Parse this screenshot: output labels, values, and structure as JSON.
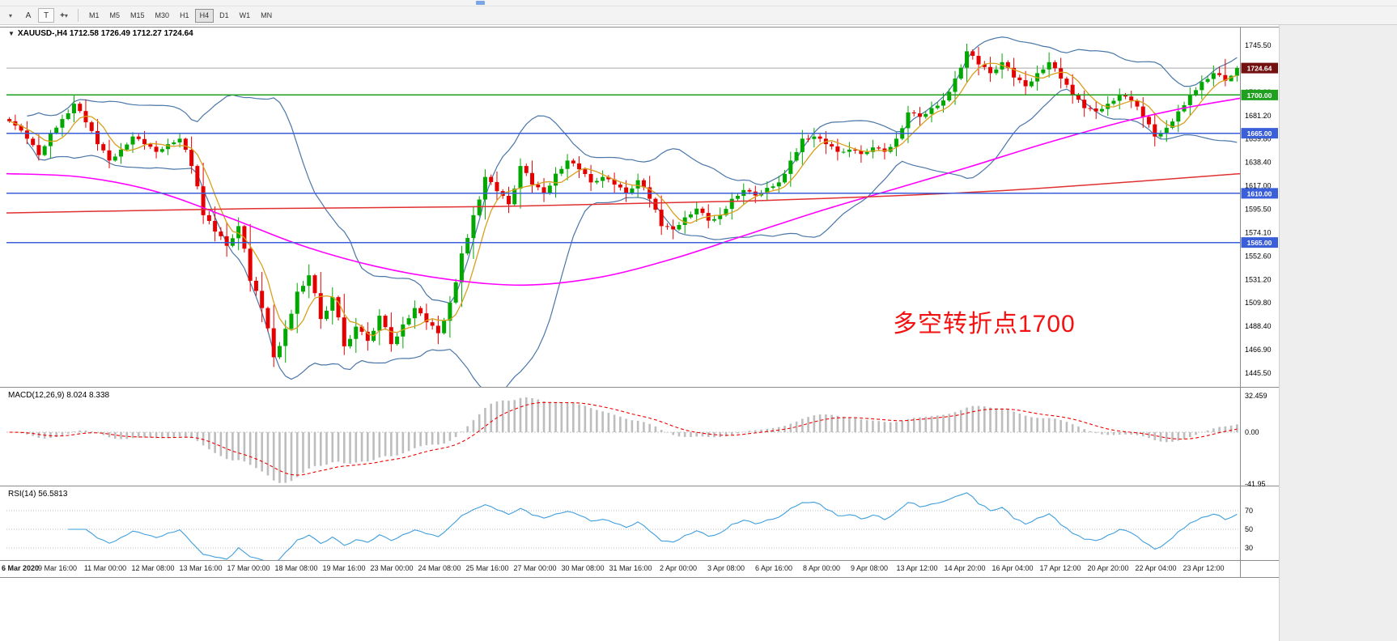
{
  "toolbar": {
    "chart_dropdown_glyph": "▾",
    "annotation_tool_label": "A",
    "text_tool_label": "T",
    "crosshair_glyph": "+",
    "tools_dropdown_glyph": "▾",
    "timeframes": [
      "M1",
      "M5",
      "M15",
      "M30",
      "H1",
      "H4",
      "D1",
      "W1",
      "MN"
    ],
    "active_timeframe": "H4"
  },
  "chart": {
    "collapse_glyph": "▼",
    "title_line": "XAUUSD-,H4  1712.58 1726.49 1712.27 1724.64",
    "annotation": "多空转折点1700",
    "price_axis_labels": [
      "1745.50",
      "1702.60",
      "1681.20",
      "1659.80",
      "1638.40",
      "1617.00",
      "1595.50",
      "1574.10",
      "1552.60",
      "1531.20",
      "1509.80",
      "1488.40",
      "1466.90",
      "1445.50"
    ],
    "badges": [
      {
        "label": "1724.64",
        "value": 1724.64,
        "type": "dark"
      },
      {
        "label": "1700.00",
        "value": 1700,
        "type": "green"
      },
      {
        "label": "1665.00",
        "value": 1665,
        "type": "blue"
      },
      {
        "label": "1610.00",
        "value": 1610,
        "type": "blue"
      },
      {
        "label": "1565.00",
        "value": 1565,
        "type": "blue"
      }
    ]
  },
  "macd": {
    "label": "MACD(12,26,9) 8.024 8.338",
    "axis_labels": [
      "32.459",
      "0.00",
      "-41.95"
    ]
  },
  "rsi": {
    "label": "RSI(14) 56.5813",
    "axis_labels": [
      "70",
      "50",
      "30"
    ]
  },
  "colors": {
    "up": "#00A800",
    "down": "#E50000",
    "bollinger": "#4A76A8",
    "ma_fast": "#D8A01D",
    "ma_mid": "#FF00FF",
    "ma_slow": "#E03030",
    "level_blue": "#3A5FD9",
    "level_green": "#1FA11F",
    "badge_dark": "#731010",
    "bid_line": "#A8A8A8",
    "macd_hist": "#BDBDBD",
    "macd_signal": "#F00000",
    "rsi_line": "#3E9EDE",
    "annotation": "#F21212"
  },
  "chart_data": {
    "type": "candlestick",
    "symbol": "XAUUSD-",
    "timeframe": "H4",
    "last_ohlc": {
      "open": 1712.58,
      "high": 1726.49,
      "low": 1712.27,
      "close": 1724.64
    },
    "current_price": 1724.64,
    "horizontal_levels": [
      {
        "value": 1700,
        "color": "green"
      },
      {
        "value": 1665,
        "color": "blue"
      },
      {
        "value": 1610,
        "color": "blue"
      },
      {
        "value": 1565,
        "color": "blue"
      }
    ],
    "candles": [
      [
        1678,
        1682,
        1668,
        1672
      ],
      [
        1672,
        1676,
        1655,
        1660
      ],
      [
        1660,
        1664,
        1640,
        1645
      ],
      [
        1645,
        1668,
        1642,
        1665
      ],
      [
        1665,
        1682,
        1662,
        1678
      ],
      [
        1678,
        1700,
        1675,
        1692
      ],
      [
        1692,
        1696,
        1670,
        1675
      ],
      [
        1675,
        1678,
        1649,
        1655
      ],
      [
        1655,
        1659,
        1633,
        1640
      ],
      [
        1640,
        1656,
        1637,
        1650
      ],
      [
        1650,
        1666,
        1647,
        1662
      ],
      [
        1662,
        1667,
        1650,
        1655
      ],
      [
        1655,
        1658,
        1642,
        1648
      ],
      [
        1648,
        1660,
        1645,
        1655
      ],
      [
        1655,
        1665,
        1652,
        1660
      ],
      [
        1660,
        1662,
        1628,
        1635
      ],
      [
        1635,
        1638,
        1582,
        1590
      ],
      [
        1590,
        1598,
        1566,
        1575
      ],
      [
        1575,
        1584,
        1552,
        1562
      ],
      [
        1562,
        1588,
        1558,
        1580
      ],
      [
        1580,
        1582,
        1520,
        1530
      ],
      [
        1530,
        1538,
        1492,
        1505
      ],
      [
        1505,
        1508,
        1451,
        1460
      ],
      [
        1460,
        1494,
        1455,
        1486
      ],
      [
        1486,
        1528,
        1482,
        1520
      ],
      [
        1520,
        1545,
        1514,
        1535
      ],
      [
        1535,
        1538,
        1486,
        1495
      ],
      [
        1495,
        1524,
        1490,
        1515
      ],
      [
        1515,
        1518,
        1462,
        1470
      ],
      [
        1470,
        1496,
        1464,
        1488
      ],
      [
        1488,
        1492,
        1466,
        1475
      ],
      [
        1475,
        1504,
        1471,
        1498
      ],
      [
        1498,
        1501,
        1465,
        1472
      ],
      [
        1472,
        1497,
        1468,
        1490
      ],
      [
        1490,
        1512,
        1486,
        1505
      ],
      [
        1505,
        1509,
        1485,
        1492
      ],
      [
        1492,
        1498,
        1472,
        1482
      ],
      [
        1482,
        1516,
        1478,
        1510
      ],
      [
        1510,
        1562,
        1506,
        1555
      ],
      [
        1555,
        1598,
        1550,
        1590
      ],
      [
        1590,
        1632,
        1586,
        1625
      ],
      [
        1625,
        1630,
        1604,
        1612
      ],
      [
        1612,
        1616,
        1592,
        1600
      ],
      [
        1600,
        1642,
        1596,
        1635
      ],
      [
        1635,
        1640,
        1610,
        1618
      ],
      [
        1618,
        1624,
        1602,
        1610
      ],
      [
        1610,
        1634,
        1606,
        1628
      ],
      [
        1628,
        1646,
        1622,
        1640
      ],
      [
        1640,
        1644,
        1624,
        1632
      ],
      [
        1632,
        1636,
        1612,
        1620
      ],
      [
        1620,
        1631,
        1615,
        1625
      ],
      [
        1625,
        1629,
        1610,
        1618
      ],
      [
        1618,
        1622,
        1602,
        1610
      ],
      [
        1610,
        1628,
        1606,
        1622
      ],
      [
        1622,
        1626,
        1597,
        1605
      ],
      [
        1605,
        1608,
        1572,
        1580
      ],
      [
        1580,
        1586,
        1568,
        1577
      ],
      [
        1577,
        1594,
        1573,
        1588
      ],
      [
        1588,
        1602,
        1584,
        1596
      ],
      [
        1596,
        1600,
        1578,
        1585
      ],
      [
        1585,
        1597,
        1581,
        1590
      ],
      [
        1590,
        1611,
        1586,
        1605
      ],
      [
        1605,
        1619,
        1600,
        1613
      ],
      [
        1613,
        1617,
        1601,
        1608
      ],
      [
        1608,
        1621,
        1604,
        1615
      ],
      [
        1615,
        1626,
        1610,
        1620
      ],
      [
        1620,
        1648,
        1616,
        1640
      ],
      [
        1640,
        1668,
        1636,
        1660
      ],
      [
        1660,
        1670,
        1652,
        1662
      ],
      [
        1662,
        1667,
        1646,
        1655
      ],
      [
        1655,
        1660,
        1640,
        1648
      ],
      [
        1648,
        1657,
        1643,
        1650
      ],
      [
        1650,
        1654,
        1638,
        1646
      ],
      [
        1646,
        1659,
        1642,
        1652
      ],
      [
        1652,
        1656,
        1641,
        1648
      ],
      [
        1648,
        1666,
        1644,
        1660
      ],
      [
        1660,
        1690,
        1656,
        1684
      ],
      [
        1684,
        1689,
        1672,
        1680
      ],
      [
        1680,
        1694,
        1675,
        1688
      ],
      [
        1688,
        1702,
        1684,
        1695
      ],
      [
        1695,
        1722,
        1691,
        1715
      ],
      [
        1715,
        1747,
        1711,
        1740
      ],
      [
        1740,
        1744,
        1718,
        1728
      ],
      [
        1728,
        1735,
        1712,
        1720
      ],
      [
        1720,
        1738,
        1715,
        1730
      ],
      [
        1730,
        1734,
        1708,
        1716
      ],
      [
        1716,
        1722,
        1700,
        1708
      ],
      [
        1708,
        1727,
        1704,
        1720
      ],
      [
        1720,
        1739,
        1716,
        1730
      ],
      [
        1730,
        1734,
        1706,
        1715
      ],
      [
        1715,
        1719,
        1692,
        1700
      ],
      [
        1700,
        1704,
        1680,
        1688
      ],
      [
        1688,
        1694,
        1678,
        1685
      ],
      [
        1685,
        1699,
        1681,
        1692
      ],
      [
        1692,
        1706,
        1687,
        1700
      ],
      [
        1700,
        1704,
        1688,
        1695
      ],
      [
        1695,
        1698,
        1670,
        1680
      ],
      [
        1680,
        1684,
        1653,
        1662
      ],
      [
        1662,
        1677,
        1657,
        1670
      ],
      [
        1670,
        1691,
        1666,
        1685
      ],
      [
        1685,
        1707,
        1681,
        1700
      ],
      [
        1700,
        1718,
        1696,
        1712
      ],
      [
        1712,
        1727,
        1708,
        1720
      ],
      [
        1720,
        1733,
        1708,
        1713
      ],
      [
        1712.58,
        1726.49,
        1712.27,
        1724.64
      ]
    ],
    "bollinger": {
      "period": 20,
      "deviation": 2
    },
    "ma_fast_period": 6,
    "ma_mid_anchors": [
      [
        0,
        1628
      ],
      [
        0.06,
        1625
      ],
      [
        0.12,
        1612
      ],
      [
        0.18,
        1588
      ],
      [
        0.24,
        1562
      ],
      [
        0.3,
        1543
      ],
      [
        0.36,
        1531
      ],
      [
        0.42,
        1526
      ],
      [
        0.48,
        1533
      ],
      [
        0.54,
        1550
      ],
      [
        0.6,
        1572
      ],
      [
        0.66,
        1594
      ],
      [
        0.72,
        1614
      ],
      [
        0.78,
        1634
      ],
      [
        0.84,
        1655
      ],
      [
        0.9,
        1674
      ],
      [
        0.95,
        1687
      ],
      [
        1,
        1697
      ]
    ],
    "ma_slow_anchors": [
      [
        0,
        1592
      ],
      [
        0.2,
        1596
      ],
      [
        0.4,
        1598
      ],
      [
        0.6,
        1603
      ],
      [
        0.8,
        1612
      ],
      [
        1,
        1628
      ]
    ],
    "macd": {
      "params": [
        12,
        26,
        9
      ],
      "current_main": 8.024,
      "current_signal": 8.338,
      "scale_max": 32.459,
      "scale_min": -41.95
    },
    "rsi": {
      "period": 14,
      "current": 56.5813,
      "levels": [
        70,
        50,
        30
      ]
    },
    "time_labels": [
      "6 Mar 2020",
      "9 Mar 16:00",
      "11 Mar 00:00",
      "12 Mar 08:00",
      "13 Mar 16:00",
      "17 Mar 00:00",
      "18 Mar 08:00",
      "19 Mar 16:00",
      "23 Mar 00:00",
      "24 Mar 08:00",
      "25 Mar 16:00",
      "27 Mar 00:00",
      "30 Mar 08:00",
      "31 Mar 16:00",
      "2 Apr 00:00",
      "3 Apr 08:00",
      "6 Apr 16:00",
      "8 Apr 00:00",
      "9 Apr 08:00",
      "13 Apr 12:00",
      "14 Apr 20:00",
      "16 Apr 04:00",
      "17 Apr 12:00",
      "20 Apr 20:00",
      "22 Apr 04:00",
      "23 Apr 12:00"
    ]
  }
}
